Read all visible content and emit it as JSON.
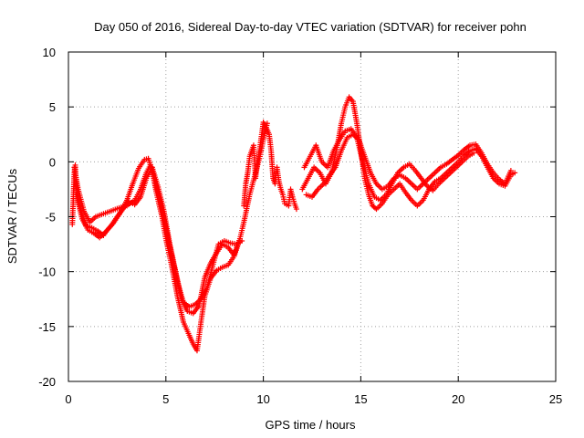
{
  "chart_data": {
    "type": "scatter",
    "title": "Day 050 of 2016, Sidereal Day-to-day VTEC variation (SDTVAR) for receiver pohn",
    "xlabel": "GPS time / hours",
    "ylabel": "SDTVAR / TECUs",
    "xlim": [
      0,
      25
    ],
    "ylim": [
      -20,
      10
    ],
    "xticks": [
      "0",
      "5",
      "10",
      "15",
      "20",
      "25"
    ],
    "yticks": [
      "-20",
      "-15",
      "-10",
      "-5",
      "0",
      "5",
      "10"
    ],
    "grid": true,
    "marker": "plus",
    "color": "#ff0000",
    "series": [
      {
        "x": [
          0.2,
          0.3,
          0.35,
          0.4,
          0.5,
          0.7,
          0.9,
          1.2,
          1.5,
          1.8,
          2.0,
          2.3,
          2.6,
          3.0,
          3.3,
          3.6,
          3.9,
          4.1,
          4.3,
          4.5,
          4.8,
          5.0,
          5.3,
          5.6,
          5.9,
          6.2,
          6.4,
          6.6,
          6.8,
          7.0,
          7.3,
          7.6,
          7.9,
          8.2,
          8.5,
          8.8,
          9.0,
          9.3,
          9.6,
          9.8,
          10.0,
          10.2
        ],
        "y": [
          -5.7,
          -1.0,
          -0.3,
          -2.0,
          -3.5,
          -4.8,
          -5.8,
          -6.0,
          -6.3,
          -6.7,
          -6.2,
          -5.6,
          -4.8,
          -3.5,
          -2.0,
          -0.6,
          0.2,
          0.3,
          -0.8,
          -2.7,
          -5.0,
          -7.0,
          -9.5,
          -12.3,
          -14.6,
          -15.8,
          -16.6,
          -17.2,
          -14.6,
          -12.2,
          -10.6,
          -9.9,
          -9.6,
          -9.4,
          -8.6,
          -7.0,
          -5.5,
          -3.0,
          -1.0,
          0.3,
          2.0,
          3.5
        ]
      },
      {
        "x": [
          0.3,
          0.5,
          0.8,
          1.1,
          1.4,
          1.7,
          2.0,
          2.3,
          2.6,
          3.0,
          3.4,
          3.7,
          4.0,
          4.2,
          4.4,
          4.7,
          5.0,
          5.3,
          5.6,
          5.9,
          6.2,
          6.5,
          6.8,
          7.1,
          7.4,
          7.7,
          8.0,
          8.3,
          8.6,
          8.9
        ],
        "y": [
          -0.5,
          -2.5,
          -4.5,
          -5.5,
          -5.0,
          -4.8,
          -4.6,
          -4.4,
          -4.2,
          -4.0,
          -3.5,
          -2.5,
          -1.0,
          -0.3,
          -1.5,
          -3.5,
          -6.0,
          -8.5,
          -11.0,
          -12.8,
          -13.2,
          -13.0,
          -12.5,
          -11.5,
          -9.5,
          -7.5,
          -7.2,
          -7.4,
          -7.5,
          -7.2
        ]
      },
      {
        "x": [
          0.4,
          0.7,
          1.0,
          1.3,
          1.6,
          1.9,
          2.2,
          2.5,
          2.8,
          3.1,
          3.4,
          3.7,
          4.0,
          4.3,
          4.6,
          4.9,
          5.2,
          5.5,
          5.8,
          6.1,
          6.4,
          6.7,
          7.0,
          7.3,
          7.6,
          7.9,
          8.2,
          8.5,
          8.8
        ],
        "y": [
          -3.0,
          -5.2,
          -6.2,
          -6.5,
          -6.9,
          -6.4,
          -5.8,
          -5.0,
          -4.3,
          -3.6,
          -3.9,
          -3.2,
          -1.5,
          -0.5,
          -2.3,
          -4.5,
          -7.5,
          -10.0,
          -12.5,
          -13.6,
          -13.8,
          -13.1,
          -10.5,
          -9.2,
          -8.3,
          -7.5,
          -7.8,
          -8.5,
          -7.0
        ]
      },
      {
        "x": [
          9.0,
          9.1,
          9.2,
          9.3,
          9.5,
          9.6,
          9.7,
          9.8,
          10.0,
          10.1,
          10.3,
          10.4,
          10.5,
          10.6,
          10.7,
          10.8,
          10.9,
          11.0,
          11.1,
          11.3,
          11.4,
          11.5,
          11.6,
          11.7
        ],
        "y": [
          -4.0,
          -2.0,
          -1.0,
          0.5,
          1.5,
          -1.5,
          0.0,
          1.0,
          3.6,
          3.3,
          2.5,
          1.0,
          -1.5,
          -2.0,
          -0.5,
          -1.8,
          -2.5,
          -3.0,
          -3.8,
          -4.0,
          -2.5,
          -3.2,
          -3.8,
          -4.3
        ]
      },
      {
        "x": [
          12.0,
          12.3,
          12.6,
          12.9,
          13.2,
          13.5,
          13.8,
          14.0,
          14.2,
          14.4,
          14.6,
          14.8,
          15.0,
          15.2,
          15.4,
          15.6,
          15.8,
          16.1,
          16.4,
          16.7,
          17.0,
          17.3,
          17.6,
          17.9,
          18.2,
          18.5,
          18.8,
          19.1,
          19.4,
          19.7,
          20.0,
          20.3,
          20.6,
          20.9,
          21.2,
          21.5,
          21.8,
          22.1,
          22.4,
          22.7,
          22.9
        ],
        "y": [
          -2.5,
          -1.5,
          -0.5,
          -1.0,
          -2.0,
          -1.0,
          1.5,
          3.5,
          5.0,
          5.9,
          5.5,
          3.5,
          1.0,
          -1.5,
          -3.0,
          -4.0,
          -4.3,
          -3.8,
          -3.0,
          -2.5,
          -2.0,
          -2.8,
          -3.5,
          -4.0,
          -3.5,
          -2.5,
          -1.8,
          -1.5,
          -1.0,
          -0.5,
          0.0,
          0.6,
          1.0,
          1.2,
          0.5,
          -0.5,
          -1.5,
          -2.0,
          -2.2,
          -1.2,
          -1.0
        ]
      },
      {
        "x": [
          12.2,
          12.5,
          12.8,
          13.1,
          13.4,
          13.7,
          14.0,
          14.3,
          14.6,
          14.9,
          15.2,
          15.5,
          15.8,
          16.1,
          16.4,
          16.7,
          17.0,
          17.3,
          17.6,
          17.9,
          18.2,
          18.5,
          18.8,
          19.1,
          19.4,
          19.7,
          20.0,
          20.3,
          20.6,
          20.9,
          21.2,
          21.5,
          21.8,
          22.1,
          22.4,
          22.7
        ],
        "y": [
          -3.0,
          -3.2,
          -2.5,
          -2.0,
          -1.2,
          -0.5,
          1.0,
          2.2,
          2.5,
          2.0,
          0.5,
          -1.0,
          -2.0,
          -2.5,
          -2.2,
          -1.5,
          -1.2,
          -1.5,
          -2.0,
          -2.5,
          -2.0,
          -1.5,
          -1.0,
          -0.5,
          -0.2,
          0.2,
          0.6,
          1.1,
          1.5,
          1.6,
          0.8,
          -0.2,
          -1.0,
          -1.6,
          -2.0,
          -0.8
        ]
      },
      {
        "x": [
          12.1,
          12.4,
          12.7,
          13.0,
          13.3,
          13.6,
          13.9,
          14.2,
          14.5,
          14.8,
          15.1,
          15.4,
          15.7,
          16.0,
          16.3,
          16.6,
          16.9,
          17.2,
          17.5,
          17.8,
          18.1,
          18.4,
          18.7,
          19.0,
          19.3,
          19.6,
          19.9,
          20.2,
          20.5,
          20.8
        ],
        "y": [
          -0.5,
          0.5,
          1.5,
          0.0,
          -0.5,
          1.0,
          2.0,
          2.8,
          3.0,
          2.2,
          0.0,
          -2.0,
          -3.2,
          -3.5,
          -3.0,
          -2.0,
          -1.0,
          -0.5,
          -0.2,
          -0.8,
          -1.5,
          -2.2,
          -2.6,
          -2.0,
          -1.5,
          -1.0,
          -0.5,
          0.0,
          0.5,
          0.8
        ]
      }
    ]
  }
}
